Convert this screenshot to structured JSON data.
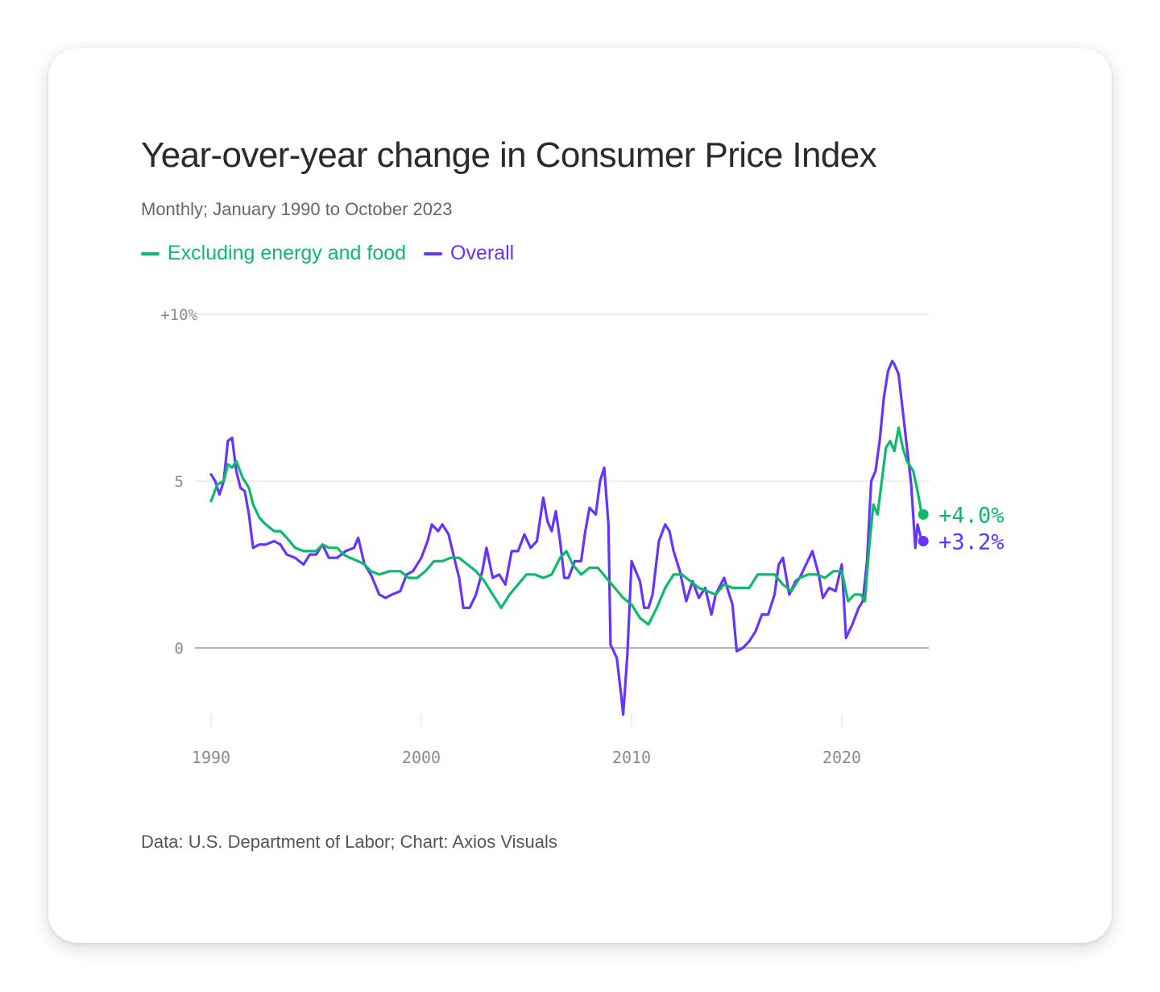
{
  "card": {
    "title": "Year-over-year change in Consumer Price Index",
    "subtitle": "Monthly; January 1990 to October 2023",
    "source": "Data: U.S. Department of Labor; Chart: Axios Visuals"
  },
  "colors": {
    "core": "#0dba6a",
    "overall": "#6633ff",
    "grid": "#dcdcdc",
    "zero_line": "#888888",
    "tick_text": "#8a8a8a"
  },
  "chart_data": {
    "type": "line",
    "title": "Year-over-year change in Consumer Price Index",
    "subtitle": "Monthly; January 1990 to October 2023",
    "xlabel": "",
    "ylabel": "",
    "xlim": [
      1990,
      2024.2
    ],
    "ylim": [
      -2.1,
      10
    ],
    "x_ticks": [
      {
        "value": 1990,
        "label": "1990"
      },
      {
        "value": 2000,
        "label": "2000"
      },
      {
        "value": 2010,
        "label": "2010"
      },
      {
        "value": 2020,
        "label": "2020"
      }
    ],
    "y_ticks": [
      {
        "value": 10,
        "label": "+10%"
      },
      {
        "value": 5,
        "label": "5"
      },
      {
        "value": 0,
        "label": "0"
      }
    ],
    "grid": true,
    "legend_position": "top-left",
    "series": [
      {
        "key": "core",
        "name": "Excluding energy and food",
        "end_label": "+4.0%",
        "end_value": 4.0,
        "points": [
          [
            1990.0,
            4.4
          ],
          [
            1990.3,
            4.9
          ],
          [
            1990.6,
            5.0
          ],
          [
            1990.8,
            5.5
          ],
          [
            1991.0,
            5.4
          ],
          [
            1991.2,
            5.6
          ],
          [
            1991.5,
            5.1
          ],
          [
            1991.8,
            4.8
          ],
          [
            1992.0,
            4.3
          ],
          [
            1992.3,
            3.9
          ],
          [
            1992.6,
            3.7
          ],
          [
            1993.0,
            3.5
          ],
          [
            1993.3,
            3.5
          ],
          [
            1993.6,
            3.3
          ],
          [
            1994.0,
            3.0
          ],
          [
            1994.4,
            2.9
          ],
          [
            1994.7,
            2.9
          ],
          [
            1995.0,
            2.9
          ],
          [
            1995.3,
            3.1
          ],
          [
            1995.6,
            3.0
          ],
          [
            1996.0,
            3.0
          ],
          [
            1996.3,
            2.8
          ],
          [
            1996.6,
            2.7
          ],
          [
            1997.0,
            2.6
          ],
          [
            1997.3,
            2.5
          ],
          [
            1997.6,
            2.3
          ],
          [
            1998.0,
            2.2
          ],
          [
            1998.5,
            2.3
          ],
          [
            1999.0,
            2.3
          ],
          [
            1999.4,
            2.1
          ],
          [
            1999.8,
            2.1
          ],
          [
            2000.2,
            2.3
          ],
          [
            2000.6,
            2.6
          ],
          [
            2001.0,
            2.6
          ],
          [
            2001.4,
            2.7
          ],
          [
            2001.8,
            2.7
          ],
          [
            2002.2,
            2.5
          ],
          [
            2002.6,
            2.3
          ],
          [
            2003.0,
            2.0
          ],
          [
            2003.4,
            1.6
          ],
          [
            2003.8,
            1.2
          ],
          [
            2004.2,
            1.6
          ],
          [
            2004.6,
            1.9
          ],
          [
            2005.0,
            2.2
          ],
          [
            2005.4,
            2.2
          ],
          [
            2005.8,
            2.1
          ],
          [
            2006.2,
            2.2
          ],
          [
            2006.6,
            2.7
          ],
          [
            2006.9,
            2.9
          ],
          [
            2007.2,
            2.5
          ],
          [
            2007.6,
            2.2
          ],
          [
            2008.0,
            2.4
          ],
          [
            2008.4,
            2.4
          ],
          [
            2008.8,
            2.1
          ],
          [
            2009.2,
            1.8
          ],
          [
            2009.6,
            1.5
          ],
          [
            2010.0,
            1.3
          ],
          [
            2010.4,
            0.9
          ],
          [
            2010.8,
            0.7
          ],
          [
            2011.2,
            1.2
          ],
          [
            2011.6,
            1.8
          ],
          [
            2012.0,
            2.2
          ],
          [
            2012.4,
            2.2
          ],
          [
            2012.8,
            2.0
          ],
          [
            2013.2,
            1.8
          ],
          [
            2013.6,
            1.7
          ],
          [
            2014.0,
            1.6
          ],
          [
            2014.4,
            1.9
          ],
          [
            2014.8,
            1.8
          ],
          [
            2015.2,
            1.8
          ],
          [
            2015.6,
            1.8
          ],
          [
            2016.0,
            2.2
          ],
          [
            2016.4,
            2.2
          ],
          [
            2016.8,
            2.2
          ],
          [
            2017.2,
            1.9
          ],
          [
            2017.6,
            1.7
          ],
          [
            2018.0,
            2.1
          ],
          [
            2018.4,
            2.2
          ],
          [
            2018.8,
            2.2
          ],
          [
            2019.2,
            2.1
          ],
          [
            2019.6,
            2.3
          ],
          [
            2020.0,
            2.3
          ],
          [
            2020.3,
            1.4
          ],
          [
            2020.6,
            1.6
          ],
          [
            2020.9,
            1.6
          ],
          [
            2021.1,
            1.4
          ],
          [
            2021.3,
            3.0
          ],
          [
            2021.5,
            4.3
          ],
          [
            2021.7,
            4.0
          ],
          [
            2021.9,
            5.0
          ],
          [
            2022.1,
            6.0
          ],
          [
            2022.3,
            6.2
          ],
          [
            2022.5,
            5.9
          ],
          [
            2022.7,
            6.6
          ],
          [
            2022.9,
            6.0
          ],
          [
            2023.1,
            5.6
          ],
          [
            2023.4,
            5.3
          ],
          [
            2023.6,
            4.7
          ],
          [
            2023.8,
            4.0
          ]
        ]
      },
      {
        "key": "overall",
        "name": "Overall",
        "end_label": "+3.2%",
        "end_value": 3.2,
        "points": [
          [
            1990.0,
            5.2
          ],
          [
            1990.2,
            5.0
          ],
          [
            1990.4,
            4.6
          ],
          [
            1990.6,
            5.0
          ],
          [
            1990.8,
            6.2
          ],
          [
            1991.0,
            6.3
          ],
          [
            1991.2,
            5.3
          ],
          [
            1991.4,
            4.8
          ],
          [
            1991.6,
            4.7
          ],
          [
            1991.8,
            4.0
          ],
          [
            1992.0,
            3.0
          ],
          [
            1992.3,
            3.1
          ],
          [
            1992.6,
            3.1
          ],
          [
            1993.0,
            3.2
          ],
          [
            1993.3,
            3.1
          ],
          [
            1993.6,
            2.8
          ],
          [
            1994.0,
            2.7
          ],
          [
            1994.4,
            2.5
          ],
          [
            1994.7,
            2.8
          ],
          [
            1995.0,
            2.8
          ],
          [
            1995.3,
            3.1
          ],
          [
            1995.6,
            2.7
          ],
          [
            1996.0,
            2.7
          ],
          [
            1996.4,
            2.9
          ],
          [
            1996.8,
            3.0
          ],
          [
            1997.0,
            3.3
          ],
          [
            1997.3,
            2.5
          ],
          [
            1997.6,
            2.2
          ],
          [
            1998.0,
            1.6
          ],
          [
            1998.3,
            1.5
          ],
          [
            1998.6,
            1.6
          ],
          [
            1999.0,
            1.7
          ],
          [
            1999.3,
            2.2
          ],
          [
            1999.6,
            2.3
          ],
          [
            2000.0,
            2.7
          ],
          [
            2000.3,
            3.2
          ],
          [
            2000.5,
            3.7
          ],
          [
            2000.8,
            3.5
          ],
          [
            2001.0,
            3.7
          ],
          [
            2001.3,
            3.4
          ],
          [
            2001.6,
            2.6
          ],
          [
            2001.8,
            2.1
          ],
          [
            2002.0,
            1.2
          ],
          [
            2002.3,
            1.2
          ],
          [
            2002.6,
            1.6
          ],
          [
            2002.9,
            2.3
          ],
          [
            2003.1,
            3.0
          ],
          [
            2003.4,
            2.1
          ],
          [
            2003.7,
            2.2
          ],
          [
            2004.0,
            1.9
          ],
          [
            2004.3,
            2.9
          ],
          [
            2004.6,
            2.9
          ],
          [
            2004.9,
            3.4
          ],
          [
            2005.2,
            3.0
          ],
          [
            2005.5,
            3.2
          ],
          [
            2005.8,
            4.5
          ],
          [
            2006.0,
            3.8
          ],
          [
            2006.2,
            3.5
          ],
          [
            2006.4,
            4.1
          ],
          [
            2006.6,
            3.2
          ],
          [
            2006.8,
            2.1
          ],
          [
            2007.0,
            2.1
          ],
          [
            2007.3,
            2.6
          ],
          [
            2007.6,
            2.6
          ],
          [
            2007.8,
            3.5
          ],
          [
            2008.0,
            4.2
          ],
          [
            2008.3,
            4.0
          ],
          [
            2008.5,
            5.0
          ],
          [
            2008.7,
            5.4
          ],
          [
            2008.9,
            3.7
          ],
          [
            2009.0,
            0.1
          ],
          [
            2009.3,
            -0.3
          ],
          [
            2009.5,
            -1.4
          ],
          [
            2009.6,
            -2.0
          ],
          [
            2009.8,
            -0.2
          ],
          [
            2010.0,
            2.6
          ],
          [
            2010.2,
            2.3
          ],
          [
            2010.4,
            2.0
          ],
          [
            2010.6,
            1.2
          ],
          [
            2010.8,
            1.2
          ],
          [
            2011.0,
            1.6
          ],
          [
            2011.3,
            3.2
          ],
          [
            2011.6,
            3.7
          ],
          [
            2011.8,
            3.5
          ],
          [
            2012.0,
            2.9
          ],
          [
            2012.3,
            2.3
          ],
          [
            2012.6,
            1.4
          ],
          [
            2012.9,
            2.0
          ],
          [
            2013.2,
            1.5
          ],
          [
            2013.5,
            1.8
          ],
          [
            2013.8,
            1.0
          ],
          [
            2014.0,
            1.6
          ],
          [
            2014.4,
            2.1
          ],
          [
            2014.8,
            1.3
          ],
          [
            2015.0,
            -0.1
          ],
          [
            2015.3,
            0.0
          ],
          [
            2015.6,
            0.2
          ],
          [
            2015.9,
            0.5
          ],
          [
            2016.2,
            1.0
          ],
          [
            2016.5,
            1.0
          ],
          [
            2016.8,
            1.6
          ],
          [
            2017.0,
            2.5
          ],
          [
            2017.2,
            2.7
          ],
          [
            2017.5,
            1.6
          ],
          [
            2017.8,
            2.0
          ],
          [
            2018.0,
            2.1
          ],
          [
            2018.3,
            2.5
          ],
          [
            2018.6,
            2.9
          ],
          [
            2018.9,
            2.2
          ],
          [
            2019.1,
            1.5
          ],
          [
            2019.4,
            1.8
          ],
          [
            2019.7,
            1.7
          ],
          [
            2020.0,
            2.5
          ],
          [
            2020.2,
            0.3
          ],
          [
            2020.5,
            0.7
          ],
          [
            2020.8,
            1.2
          ],
          [
            2021.0,
            1.4
          ],
          [
            2021.2,
            2.6
          ],
          [
            2021.4,
            5.0
          ],
          [
            2021.6,
            5.3
          ],
          [
            2021.8,
            6.2
          ],
          [
            2022.0,
            7.5
          ],
          [
            2022.2,
            8.3
          ],
          [
            2022.4,
            8.6
          ],
          [
            2022.5,
            8.5
          ],
          [
            2022.7,
            8.2
          ],
          [
            2022.9,
            7.1
          ],
          [
            2023.1,
            6.0
          ],
          [
            2023.3,
            4.9
          ],
          [
            2023.5,
            3.0
          ],
          [
            2023.6,
            3.7
          ],
          [
            2023.8,
            3.2
          ]
        ]
      }
    ]
  }
}
